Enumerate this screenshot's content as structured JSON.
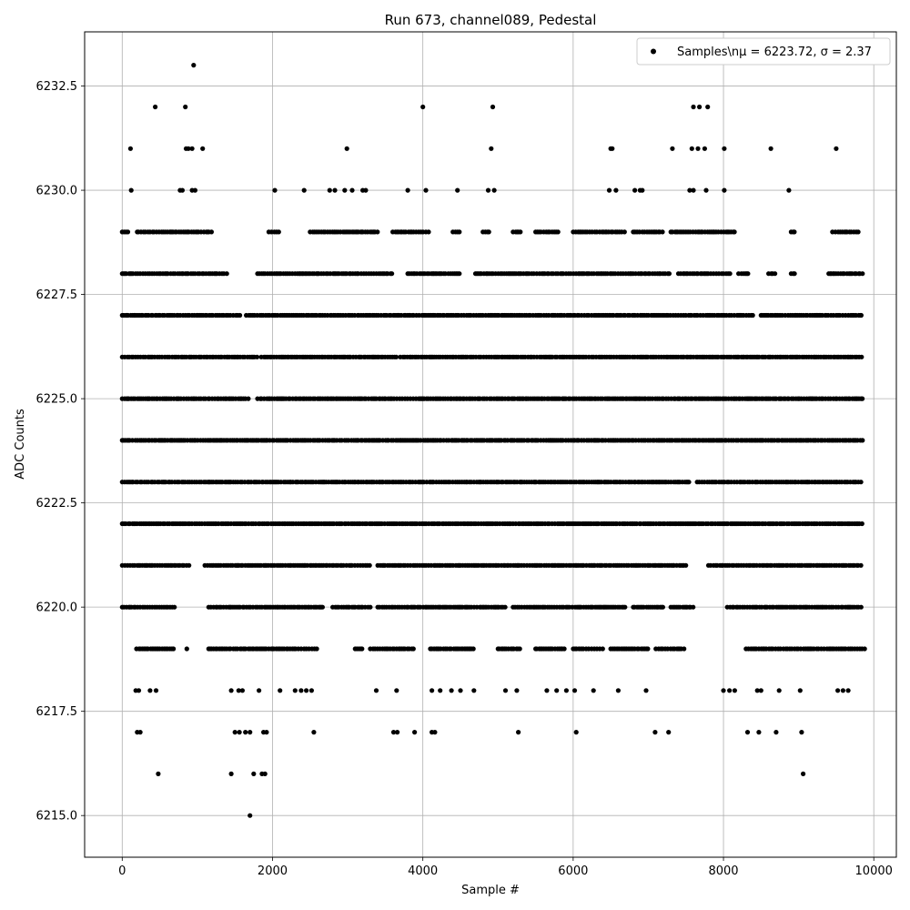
{
  "chart_data": {
    "type": "scatter",
    "title": "Run 673, channel089, Pedestal",
    "xlabel": "Sample #",
    "ylabel": "ADC Counts",
    "xlim": [
      -500,
      10300
    ],
    "ylim": [
      6214.0,
      6233.8
    ],
    "xticks": [
      0,
      2000,
      4000,
      6000,
      8000,
      10000
    ],
    "xtick_labels": [
      "0",
      "2000",
      "4000",
      "6000",
      "8000",
      "10000"
    ],
    "yticks": [
      6215.0,
      6217.5,
      6220.0,
      6222.5,
      6225.0,
      6227.5,
      6230.0,
      6232.5
    ],
    "ytick_labels": [
      "6215.0",
      "6217.5",
      "6220.0",
      "6222.5",
      "6225.0",
      "6227.5",
      "6230.0",
      "6232.5"
    ],
    "grid": true,
    "legend_position": "top-right",
    "marker_color": "#000000",
    "series": [
      {
        "name": "Samples\\n$\\mu$ = 6223.72, $\\sigma$ = 2.37",
        "legend_label": "Samples\\nμ = 6223.72, σ = 2.37",
        "x_range": [
          0,
          9850
        ],
        "levels": [
          6215,
          6216,
          6217,
          6218,
          6219,
          6220,
          6221,
          6222,
          6223,
          6224,
          6225,
          6226,
          6227,
          6228,
          6229,
          6230,
          6231,
          6232,
          6233
        ],
        "points": [
          [
            1700,
            6215
          ],
          [
            480,
            6216
          ],
          [
            1450,
            6216
          ],
          [
            1750,
            6216
          ],
          [
            1860,
            6216
          ],
          [
            1900,
            6216
          ],
          [
            9060,
            6216
          ],
          [
            200,
            6217
          ],
          [
            240,
            6217
          ],
          [
            1500,
            6217
          ],
          [
            1560,
            6217
          ],
          [
            1640,
            6217
          ],
          [
            1700,
            6217
          ],
          [
            1880,
            6217
          ],
          [
            1920,
            6217
          ],
          [
            2550,
            6217
          ],
          [
            3610,
            6217
          ],
          [
            3660,
            6217
          ],
          [
            3890,
            6217
          ],
          [
            4120,
            6217
          ],
          [
            4160,
            6217
          ],
          [
            5270,
            6217
          ],
          [
            6040,
            6217
          ],
          [
            7090,
            6217
          ],
          [
            7270,
            6217
          ],
          [
            8320,
            6217
          ],
          [
            8470,
            6217
          ],
          [
            8700,
            6217
          ],
          [
            9040,
            6217
          ],
          [
            180,
            6218
          ],
          [
            220,
            6218
          ],
          [
            370,
            6218
          ],
          [
            450,
            6218
          ],
          [
            1450,
            6218
          ],
          [
            1550,
            6218
          ],
          [
            1600,
            6218
          ],
          [
            1820,
            6218
          ],
          [
            2100,
            6218
          ],
          [
            2300,
            6218
          ],
          [
            2380,
            6218
          ],
          [
            2450,
            6218
          ],
          [
            2520,
            6218
          ],
          [
            3380,
            6218
          ],
          [
            3650,
            6218
          ],
          [
            4120,
            6218
          ],
          [
            4230,
            6218
          ],
          [
            4380,
            6218
          ],
          [
            4500,
            6218
          ],
          [
            4680,
            6218
          ],
          [
            5100,
            6218
          ],
          [
            5250,
            6218
          ],
          [
            5650,
            6218
          ],
          [
            5780,
            6218
          ],
          [
            5910,
            6218
          ],
          [
            6020,
            6218
          ],
          [
            6270,
            6218
          ],
          [
            6600,
            6218
          ],
          [
            6970,
            6218
          ],
          [
            8000,
            6218
          ],
          [
            8080,
            6218
          ],
          [
            8150,
            6218
          ],
          [
            8450,
            6218
          ],
          [
            8500,
            6218
          ],
          [
            8740,
            6218
          ],
          [
            9020,
            6218
          ],
          [
            9520,
            6218
          ],
          [
            9590,
            6218
          ],
          [
            9660,
            6218
          ],
          [
            6500,
            6231
          ],
          [
            6520,
            6231
          ],
          [
            4910,
            6231
          ],
          [
            2990,
            6231
          ],
          [
            1070,
            6231
          ],
          [
            850,
            6231
          ],
          [
            880,
            6231
          ],
          [
            930,
            6231
          ],
          [
            110,
            6231
          ],
          [
            7320,
            6231
          ],
          [
            7580,
            6231
          ],
          [
            7660,
            6231
          ],
          [
            7750,
            6231
          ],
          [
            8010,
            6231
          ],
          [
            8630,
            6231
          ],
          [
            9500,
            6231
          ],
          [
            440,
            6232
          ],
          [
            840,
            6232
          ],
          [
            4000,
            6232
          ],
          [
            4930,
            6232
          ],
          [
            7600,
            6232
          ],
          [
            7680,
            6232
          ],
          [
            7790,
            6232
          ],
          [
            950,
            6233
          ],
          [
            120,
            6230
          ],
          [
            770,
            6230
          ],
          [
            800,
            6230
          ],
          [
            930,
            6230
          ],
          [
            970,
            6230
          ],
          [
            2030,
            6230
          ],
          [
            2420,
            6230
          ],
          [
            2760,
            6230
          ],
          [
            2830,
            6230
          ],
          [
            2960,
            6230
          ],
          [
            3060,
            6230
          ],
          [
            3200,
            6230
          ],
          [
            3240,
            6230
          ],
          [
            3800,
            6230
          ],
          [
            4040,
            6230
          ],
          [
            4460,
            6230
          ],
          [
            4870,
            6230
          ],
          [
            4950,
            6230
          ],
          [
            6480,
            6230
          ],
          [
            6570,
            6230
          ],
          [
            6820,
            6230
          ],
          [
            6890,
            6230
          ],
          [
            6920,
            6230
          ],
          [
            7550,
            6230
          ],
          [
            7600,
            6230
          ],
          [
            7770,
            6230
          ],
          [
            8010,
            6230
          ],
          [
            8870,
            6230
          ]
        ],
        "dense_bands": [
          {
            "y": 6219,
            "segments": [
              [
                190,
                700
              ],
              [
                860,
                880
              ],
              [
                1150,
                2100
              ],
              [
                2100,
                2600
              ],
              [
                3100,
                3200
              ],
              [
                3300,
                3900
              ],
              [
                4100,
                4700
              ],
              [
                5000,
                5300
              ],
              [
                5500,
                5900
              ],
              [
                6000,
                6400
              ],
              [
                6500,
                7000
              ],
              [
                7100,
                7500
              ],
              [
                8300,
                9900
              ]
            ]
          },
          {
            "y": 6220,
            "segments": [
              [
                0,
                700
              ],
              [
                1150,
                2700
              ],
              [
                2800,
                3300
              ],
              [
                3400,
                5100
              ],
              [
                5200,
                6700
              ],
              [
                6800,
                7200
              ],
              [
                7300,
                7600
              ],
              [
                8050,
                9850
              ]
            ]
          },
          {
            "y": 6221,
            "segments": [
              [
                0,
                900
              ],
              [
                1100,
                3300
              ],
              [
                3400,
                7500
              ],
              [
                7800,
                9850
              ]
            ]
          },
          {
            "y": 6222,
            "segments": [
              [
                0,
                9850
              ]
            ]
          },
          {
            "y": 6223,
            "segments": [
              [
                0,
                7550
              ],
              [
                7650,
                9850
              ]
            ]
          },
          {
            "y": 6224,
            "segments": [
              [
                0,
                9850
              ]
            ]
          },
          {
            "y": 6225,
            "segments": [
              [
                0,
                1700
              ],
              [
                1800,
                9850
              ]
            ]
          },
          {
            "y": 6226,
            "segments": [
              [
                0,
                1800
              ],
              [
                1850,
                3650
              ],
              [
                3700,
                9850
              ]
            ]
          },
          {
            "y": 6227,
            "segments": [
              [
                0,
                1600
              ],
              [
                1650,
                8400
              ],
              [
                8500,
                9850
              ]
            ]
          },
          {
            "y": 6228,
            "segments": [
              [
                0,
                1400
              ],
              [
                1800,
                3600
              ],
              [
                3800,
                4500
              ],
              [
                4700,
                7300
              ],
              [
                7400,
                8100
              ],
              [
                8200,
                8350
              ],
              [
                8600,
                8700
              ],
              [
                8900,
                8950
              ],
              [
                9400,
                9850
              ]
            ]
          },
          {
            "y": 6229,
            "segments": [
              [
                0,
                100
              ],
              [
                200,
                1200
              ],
              [
                1950,
                2100
              ],
              [
                2500,
                3200
              ],
              [
                3200,
                3400
              ],
              [
                3600,
                4100
              ],
              [
                4400,
                4500
              ],
              [
                4800,
                4900
              ],
              [
                5200,
                5300
              ],
              [
                5500,
                5800
              ],
              [
                6000,
                6700
              ],
              [
                6800,
                7200
              ],
              [
                7300,
                8150
              ],
              [
                8900,
                8950
              ],
              [
                9450,
                9800
              ]
            ]
          }
        ]
      }
    ]
  }
}
